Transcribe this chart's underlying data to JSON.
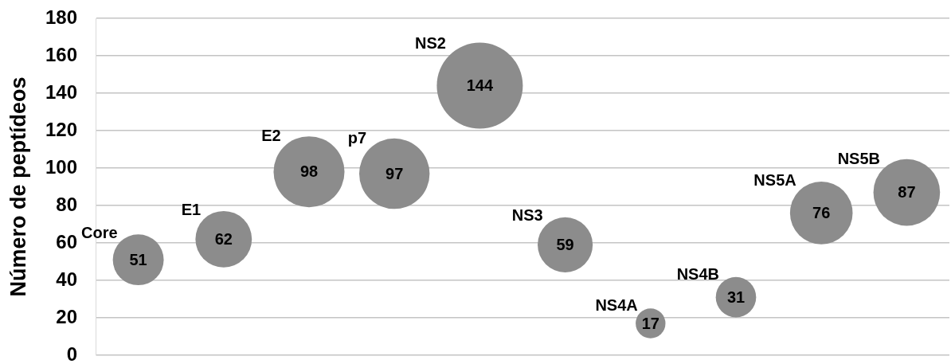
{
  "chart_data": {
    "type": "bubble",
    "ylabel": "Número de peptídeos",
    "categories": [
      null,
      null,
      null,
      null,
      null,
      null,
      null,
      null,
      null,
      null
    ],
    "series": [
      {
        "name": "Core",
        "color": "#8c8c8c",
        "values": [
          51,
          null,
          null,
          null,
          null,
          null,
          null,
          null,
          null,
          null
        ],
        "sizes": [
          0.35,
          null,
          null,
          null,
          null,
          null,
          null,
          null,
          null,
          null
        ]
      },
      {
        "name": "E1",
        "color": "#8c8c8c",
        "values": [
          null,
          62,
          null,
          null,
          null,
          null,
          null,
          null,
          null,
          null
        ],
        "sizes": [
          null,
          0.43,
          null,
          null,
          null,
          null,
          null,
          null,
          null,
          null
        ]
      },
      {
        "name": "E2",
        "color": "#8c8c8c",
        "values": [
          null,
          null,
          98,
          null,
          null,
          null,
          null,
          null,
          null,
          null
        ],
        "sizes": [
          null,
          null,
          0.68,
          null,
          null,
          null,
          null,
          null,
          null,
          null
        ]
      },
      {
        "name": "p7",
        "color": "#8c8c8c",
        "values": [
          null,
          null,
          null,
          97,
          null,
          null,
          null,
          null,
          null,
          null
        ],
        "sizes": [
          null,
          null,
          null,
          0.67,
          null,
          null,
          null,
          null,
          null,
          null
        ]
      },
      {
        "name": "NS2",
        "color": "#8c8c8c",
        "values": [
          null,
          null,
          null,
          null,
          144,
          null,
          null,
          null,
          null,
          null
        ],
        "sizes": [
          null,
          null,
          null,
          null,
          1,
          null,
          null,
          null,
          null,
          null
        ]
      },
      {
        "name": "NS3",
        "color": "#8c8c8c",
        "values": [
          null,
          null,
          null,
          null,
          null,
          59,
          null,
          null,
          null,
          null
        ],
        "sizes": [
          null,
          null,
          null,
          null,
          null,
          0.41,
          null,
          null,
          null,
          null
        ]
      },
      {
        "name": "NS4A",
        "color": "#8c8c8c",
        "values": [
          null,
          null,
          null,
          null,
          null,
          null,
          17,
          null,
          null,
          null
        ],
        "sizes": [
          null,
          null,
          null,
          null,
          null,
          null,
          0.12,
          null,
          null,
          null
        ]
      },
      {
        "name": "NS4B",
        "color": "#8c8c8c",
        "values": [
          null,
          null,
          null,
          null,
          null,
          null,
          null,
          31,
          null,
          null
        ],
        "sizes": [
          null,
          null,
          null,
          null,
          null,
          null,
          null,
          0.22,
          null,
          null
        ]
      },
      {
        "name": "NS5A",
        "color": "#8c8c8c",
        "values": [
          null,
          null,
          null,
          null,
          null,
          null,
          null,
          null,
          76,
          null
        ],
        "sizes": [
          null,
          null,
          null,
          null,
          null,
          null,
          null,
          null,
          0.53,
          null
        ]
      },
      {
        "name": "NS5B",
        "color": "#8c8c8c",
        "values": [
          null,
          null,
          null,
          null,
          null,
          null,
          null,
          null,
          null,
          87
        ],
        "sizes": [
          null,
          null,
          null,
          null,
          null,
          null,
          null,
          null,
          null,
          0.6
        ]
      }
    ],
    "ylim": [
      0,
      180
    ],
    "yticks": [
      0,
      20,
      40,
      60,
      80,
      100,
      120,
      140,
      160,
      180
    ],
    "grid": "y",
    "legend": false,
    "tick_labels": "y",
    "data_labels": true
  }
}
